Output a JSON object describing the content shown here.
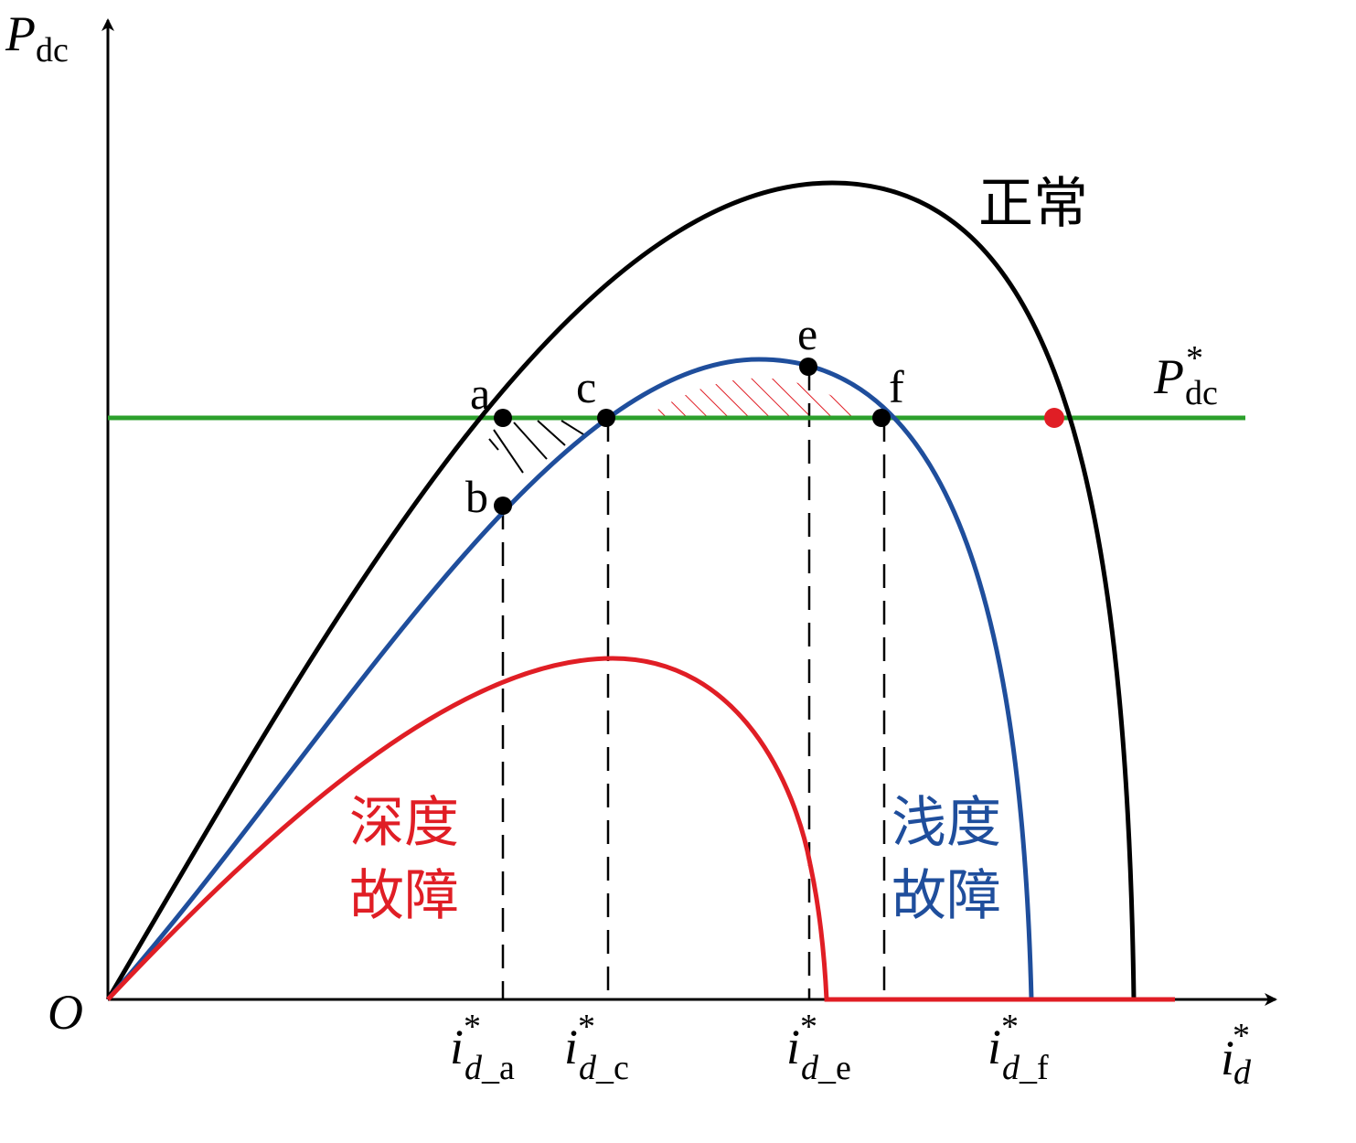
{
  "axes": {
    "y_label": {
      "main": "P",
      "sub": "dc"
    },
    "x_label": {
      "main": "i",
      "sup": "*",
      "sub": "d"
    },
    "origin": "O"
  },
  "reference_line": {
    "main": "P",
    "sup": "*",
    "sub": "dc"
  },
  "points": {
    "a": "a",
    "b": "b",
    "c": "c",
    "e": "e",
    "f": "f"
  },
  "x_ticks": [
    {
      "main": "i",
      "sup": "*",
      "sub": "d",
      "suffix": "_a"
    },
    {
      "main": "i",
      "sup": "*",
      "sub": "d",
      "suffix": "_c"
    },
    {
      "main": "i",
      "sup": "*",
      "sub": "d",
      "suffix": "_e"
    },
    {
      "main": "i",
      "sup": "*",
      "sub": "d",
      "suffix": "_f"
    }
  ],
  "curves": {
    "normal": "正常",
    "shallow": [
      "浅度",
      "故障"
    ],
    "deep": [
      "深度",
      "故障"
    ]
  }
}
